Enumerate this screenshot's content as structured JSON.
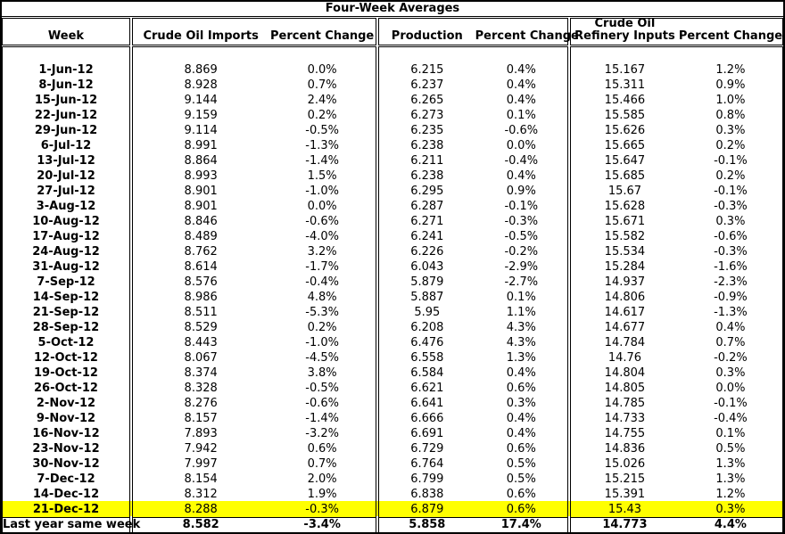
{
  "chart_data": {
    "type": "table",
    "title": "Four-Week Averages",
    "columns": [
      "Week",
      "Crude Oil Imports",
      "Percent Change",
      "Production",
      "Percent Change",
      "Crude Oil Refinery Inputs",
      "Percent Change"
    ],
    "refinery_header_lines": [
      "Crude Oil",
      "Refinery Inputs"
    ],
    "highlight_color": "#FFFF00",
    "highlighted_row": "21-Dec-12",
    "rows": [
      [
        "1-Jun-12",
        "8.869",
        "0.0%",
        "6.215",
        "0.4%",
        "15.167",
        "1.2%"
      ],
      [
        "8-Jun-12",
        "8.928",
        "0.7%",
        "6.237",
        "0.4%",
        "15.311",
        "0.9%"
      ],
      [
        "15-Jun-12",
        "9.144",
        "2.4%",
        "6.265",
        "0.4%",
        "15.466",
        "1.0%"
      ],
      [
        "22-Jun-12",
        "9.159",
        "0.2%",
        "6.273",
        "0.1%",
        "15.585",
        "0.8%"
      ],
      [
        "29-Jun-12",
        "9.114",
        "-0.5%",
        "6.235",
        "-0.6%",
        "15.626",
        "0.3%"
      ],
      [
        "6-Jul-12",
        "8.991",
        "-1.3%",
        "6.238",
        "0.0%",
        "15.665",
        "0.2%"
      ],
      [
        "13-Jul-12",
        "8.864",
        "-1.4%",
        "6.211",
        "-0.4%",
        "15.647",
        "-0.1%"
      ],
      [
        "20-Jul-12",
        "8.993",
        "1.5%",
        "6.238",
        "0.4%",
        "15.685",
        "0.2%"
      ],
      [
        "27-Jul-12",
        "8.901",
        "-1.0%",
        "6.295",
        "0.9%",
        "15.67",
        "-0.1%"
      ],
      [
        "3-Aug-12",
        "8.901",
        "0.0%",
        "6.287",
        "-0.1%",
        "15.628",
        "-0.3%"
      ],
      [
        "10-Aug-12",
        "8.846",
        "-0.6%",
        "6.271",
        "-0.3%",
        "15.671",
        "0.3%"
      ],
      [
        "17-Aug-12",
        "8.489",
        "-4.0%",
        "6.241",
        "-0.5%",
        "15.582",
        "-0.6%"
      ],
      [
        "24-Aug-12",
        "8.762",
        "3.2%",
        "6.226",
        "-0.2%",
        "15.534",
        "-0.3%"
      ],
      [
        "31-Aug-12",
        "8.614",
        "-1.7%",
        "6.043",
        "-2.9%",
        "15.284",
        "-1.6%"
      ],
      [
        "7-Sep-12",
        "8.576",
        "-0.4%",
        "5.879",
        "-2.7%",
        "14.937",
        "-2.3%"
      ],
      [
        "14-Sep-12",
        "8.986",
        "4.8%",
        "5.887",
        "0.1%",
        "14.806",
        "-0.9%"
      ],
      [
        "21-Sep-12",
        "8.511",
        "-5.3%",
        "5.95",
        "1.1%",
        "14.617",
        "-1.3%"
      ],
      [
        "28-Sep-12",
        "8.529",
        "0.2%",
        "6.208",
        "4.3%",
        "14.677",
        "0.4%"
      ],
      [
        "5-Oct-12",
        "8.443",
        "-1.0%",
        "6.476",
        "4.3%",
        "14.784",
        "0.7%"
      ],
      [
        "12-Oct-12",
        "8.067",
        "-4.5%",
        "6.558",
        "1.3%",
        "14.76",
        "-0.2%"
      ],
      [
        "19-Oct-12",
        "8.374",
        "3.8%",
        "6.584",
        "0.4%",
        "14.804",
        "0.3%"
      ],
      [
        "26-Oct-12",
        "8.328",
        "-0.5%",
        "6.621",
        "0.6%",
        "14.805",
        "0.0%"
      ],
      [
        "2-Nov-12",
        "8.276",
        "-0.6%",
        "6.641",
        "0.3%",
        "14.785",
        "-0.1%"
      ],
      [
        "9-Nov-12",
        "8.157",
        "-1.4%",
        "6.666",
        "0.4%",
        "14.733",
        "-0.4%"
      ],
      [
        "16-Nov-12",
        "7.893",
        "-3.2%",
        "6.691",
        "0.4%",
        "14.755",
        "0.1%"
      ],
      [
        "23-Nov-12",
        "7.942",
        "0.6%",
        "6.729",
        "0.6%",
        "14.836",
        "0.5%"
      ],
      [
        "30-Nov-12",
        "7.997",
        "0.7%",
        "6.764",
        "0.5%",
        "15.026",
        "1.3%"
      ],
      [
        "7-Dec-12",
        "8.154",
        "2.0%",
        "6.799",
        "0.5%",
        "15.215",
        "1.3%"
      ],
      [
        "14-Dec-12",
        "8.312",
        "1.9%",
        "6.838",
        "0.6%",
        "15.391",
        "1.2%"
      ],
      [
        "21-Dec-12",
        "8.288",
        "-0.3%",
        "6.879",
        "0.6%",
        "15.43",
        "0.3%"
      ]
    ],
    "footer_row": [
      "Last year same week",
      "8.582",
      "-3.4%",
      "5.858",
      "17.4%",
      "14.773",
      "4.4%"
    ]
  }
}
